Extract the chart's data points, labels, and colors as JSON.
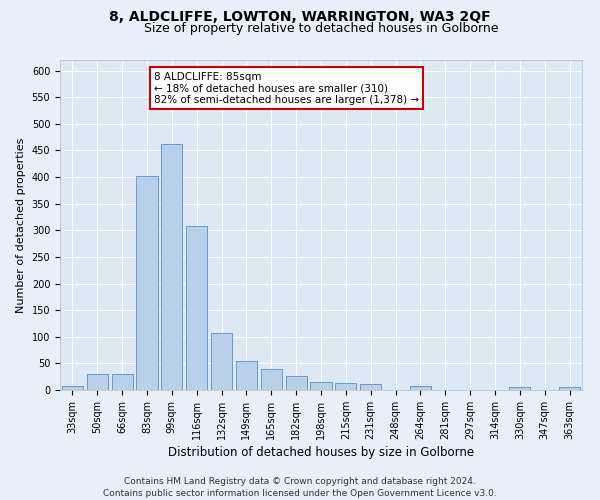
{
  "title": "8, ALDCLIFFE, LOWTON, WARRINGTON, WA3 2QF",
  "subtitle": "Size of property relative to detached houses in Golborne",
  "xlabel": "Distribution of detached houses by size in Golborne",
  "ylabel": "Number of detached properties",
  "categories": [
    "33sqm",
    "50sqm",
    "66sqm",
    "83sqm",
    "99sqm",
    "116sqm",
    "132sqm",
    "149sqm",
    "165sqm",
    "182sqm",
    "198sqm",
    "215sqm",
    "231sqm",
    "248sqm",
    "264sqm",
    "281sqm",
    "297sqm",
    "314sqm",
    "330sqm",
    "347sqm",
    "363sqm"
  ],
  "values": [
    7,
    30,
    30,
    403,
    463,
    308,
    108,
    54,
    40,
    27,
    15,
    13,
    11,
    0,
    7,
    0,
    0,
    0,
    5,
    0,
    5
  ],
  "bar_color": "#b8d0ea",
  "bar_edge_color": "#6699cc",
  "background_color": "#e8eff8",
  "plot_bg_color": "#dce8f5",
  "grid_color": "#ffffff",
  "annotation_text": "8 ALDCLIFFE: 85sqm\n← 18% of detached houses are smaller (310)\n82% of semi-detached houses are larger (1,378) →",
  "annotation_box_color": "#ffffff",
  "annotation_box_edge_color": "#cc0000",
  "ylim": [
    0,
    620
  ],
  "yticks": [
    0,
    50,
    100,
    150,
    200,
    250,
    300,
    350,
    400,
    450,
    500,
    550,
    600
  ],
  "footer_line1": "Contains HM Land Registry data © Crown copyright and database right 2024.",
  "footer_line2": "Contains public sector information licensed under the Open Government Licence v3.0.",
  "title_fontsize": 10,
  "subtitle_fontsize": 9,
  "xlabel_fontsize": 8.5,
  "ylabel_fontsize": 8,
  "tick_fontsize": 7,
  "annot_fontsize": 7.5,
  "footer_fontsize": 6.5
}
